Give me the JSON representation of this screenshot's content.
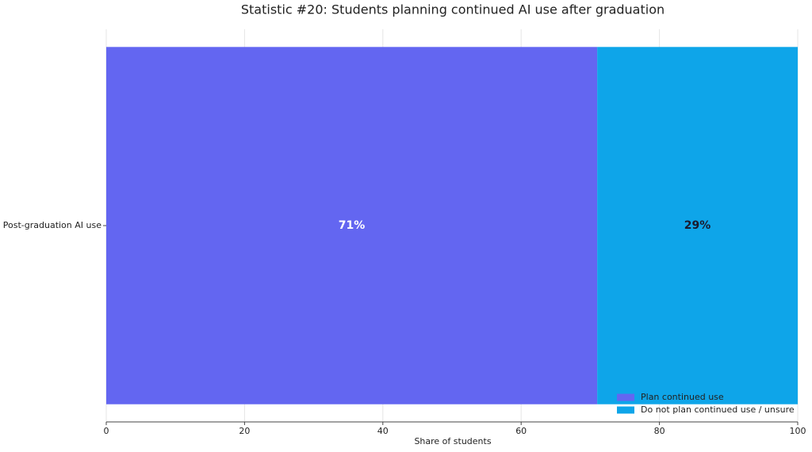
{
  "chart_data": {
    "type": "bar",
    "orientation": "horizontal",
    "stacked": true,
    "title": "Statistic #20: Students planning continued AI use after graduation",
    "xlabel": "Share of students",
    "categories": [
      "Post-graduation AI use"
    ],
    "series": [
      {
        "name": "Plan continued use",
        "color": "#6366f1",
        "label_color": "#ffffff",
        "values": [
          71
        ],
        "value_labels": [
          "71%"
        ]
      },
      {
        "name": "Do not plan continued use / unsure",
        "color": "#0ea5e9",
        "label_color": "#1a1a2e",
        "values": [
          29
        ],
        "value_labels": [
          "29%"
        ]
      }
    ],
    "xlim": [
      0,
      100
    ],
    "xticks": [
      0,
      20,
      40,
      60,
      80,
      100
    ],
    "grid": true,
    "legend": "lower right"
  }
}
